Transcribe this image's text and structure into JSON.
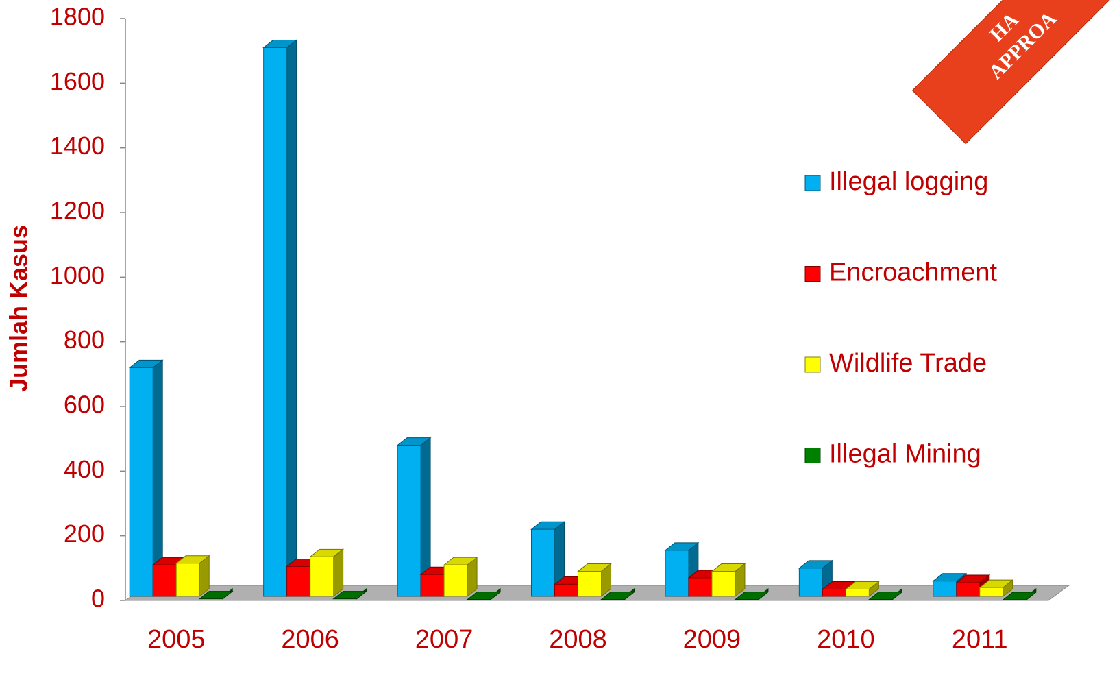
{
  "chart_data": {
    "type": "bar3d",
    "y_label": "Jumlah Kasus",
    "banner": [
      "HA",
      "APPROA"
    ],
    "categories": [
      "2005",
      "2006",
      "2007",
      "2008",
      "2009",
      "2010",
      "2011"
    ],
    "series": [
      {
        "name": "Illegal logging",
        "color": "#00b0f0",
        "values": [
          720,
          1710,
          480,
          220,
          155,
          100,
          60
        ]
      },
      {
        "name": "Encroachment",
        "color": "#ff0000",
        "values": [
          110,
          105,
          80,
          50,
          70,
          35,
          55
        ]
      },
      {
        "name": "Wildlife Trade",
        "color": "#ffff00",
        "values": [
          115,
          135,
          110,
          90,
          90,
          35,
          40
        ]
      },
      {
        "name": "Illegal Mining",
        "color": "#008000",
        "values": [
          5,
          5,
          3,
          3,
          3,
          3,
          2
        ]
      }
    ],
    "ylim": [
      0,
      1800
    ],
    "yticks": [
      0,
      200,
      400,
      600,
      800,
      1000,
      1200,
      1400,
      1600,
      1800
    ],
    "legend": "right"
  }
}
